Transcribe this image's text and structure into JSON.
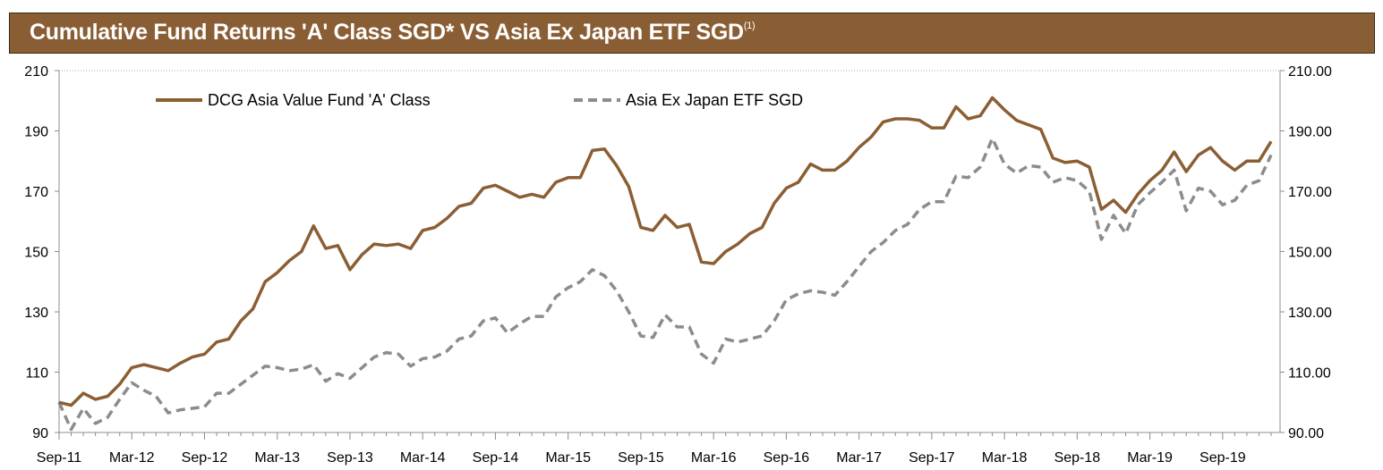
{
  "title": {
    "main": "Cumulative Fund Returns 'A' Class SGD* VS Asia Ex Japan ETF SGD",
    "superscript": "(1)"
  },
  "chart_data": {
    "type": "line",
    "title": "Cumulative Fund Returns 'A' Class SGD* VS Asia Ex Japan ETF SGD(1)",
    "xlabel": "",
    "ylabel": "",
    "ylim": [
      90,
      210
    ],
    "y_ticks_left": [
      "90",
      "110",
      "130",
      "150",
      "170",
      "190",
      "210"
    ],
    "y_ticks_right": [
      "90.00",
      "110.00",
      "130.00",
      "150.00",
      "170.00",
      "190.00",
      "210.00"
    ],
    "x_tick_labels": [
      "Sep-11",
      "Mar-12",
      "Sep-12",
      "Mar-13",
      "Sep-13",
      "Mar-14",
      "Sep-14",
      "Mar-15",
      "Sep-15",
      "Mar-16",
      "Sep-16",
      "Mar-17",
      "Sep-17",
      "Mar-18",
      "Sep-18",
      "Mar-19",
      "Sep-19"
    ],
    "legend_position": "top-left",
    "grid": false,
    "series": [
      {
        "name": "DCG Asia Value Fund 'A' Class",
        "color": "#8b5e34",
        "style": "solid",
        "values": [
          100,
          99,
          103,
          101,
          102,
          106,
          111.5,
          112.5,
          111.5,
          110.5,
          113,
          115,
          116,
          120,
          121,
          127,
          131,
          140,
          143,
          147,
          150,
          158.5,
          151,
          152,
          144,
          149,
          152.5,
          152,
          152.5,
          151,
          157,
          158,
          161,
          165,
          166,
          171,
          172,
          170,
          168,
          169,
          168,
          173,
          174.5,
          174.5,
          183.5,
          184,
          178.5,
          171.5,
          158,
          157,
          162,
          158,
          159,
          146.5,
          146,
          150,
          152.5,
          156,
          158,
          166,
          171,
          173,
          179,
          177,
          177,
          180,
          184.5,
          188,
          193,
          194,
          194,
          193.5,
          191,
          191,
          198,
          194,
          195,
          201,
          197,
          193.5,
          192,
          190.5,
          181,
          179.5,
          180,
          178,
          164,
          167,
          163,
          169,
          173.5,
          177,
          183,
          176.5,
          182,
          184.5,
          180,
          177,
          180,
          180,
          186.5
        ]
      },
      {
        "name": "Asia Ex Japan ETF SGD",
        "color": "#8c8c8c",
        "style": "dashed",
        "values": [
          100,
          91,
          98,
          93,
          95,
          101,
          106.5,
          104,
          102,
          96.5,
          97.5,
          98,
          98.5,
          103,
          103,
          106,
          109,
          112,
          111.5,
          110.5,
          111,
          112.5,
          107,
          109.5,
          108,
          111.5,
          115,
          116.5,
          116,
          112,
          114.5,
          115,
          117,
          121,
          122,
          127,
          128,
          123,
          126,
          128.5,
          128.5,
          135,
          138,
          140,
          144,
          142,
          137,
          130,
          122,
          121.5,
          129,
          125,
          125,
          116,
          113,
          121,
          120,
          121,
          122,
          127,
          134,
          136,
          137,
          136.5,
          135.5,
          140,
          145,
          150,
          153,
          157,
          159,
          164,
          166.5,
          166.5,
          175,
          174.5,
          178,
          187.5,
          179,
          176,
          178.5,
          178,
          173,
          174.5,
          173.5,
          170,
          154,
          162,
          156,
          165.5,
          169.5,
          173,
          177,
          163.5,
          171,
          170,
          165.5,
          167,
          172,
          173.5,
          182
        ]
      }
    ]
  }
}
